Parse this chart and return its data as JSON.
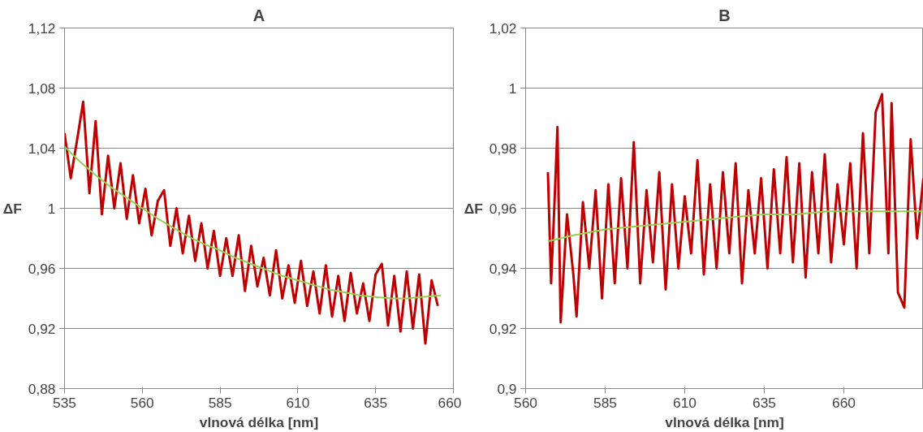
{
  "chart_data": [
    {
      "type": "line",
      "title": "A",
      "xlabel": "vlnová délka [nm]",
      "ylabel": "ΔF",
      "grid": "y",
      "line_style": "solid",
      "xlim": [
        535,
        660
      ],
      "xticks": [
        535,
        560,
        585,
        610,
        635,
        660
      ],
      "ylim": [
        0.88,
        1.12
      ],
      "yticks": [
        {
          "value": 0.88,
          "label": "0,88"
        },
        {
          "value": 0.92,
          "label": "0,92"
        },
        {
          "value": 0.96,
          "label": "0,96"
        },
        1,
        {
          "value": 1.04,
          "label": "1,04"
        },
        {
          "value": 1.08,
          "label": "1,08"
        },
        {
          "value": 1.12,
          "label": "1,12"
        }
      ],
      "series": [
        {
          "color": "#c00000",
          "x": [
            535,
            537,
            539,
            541,
            543,
            545,
            547,
            549,
            551,
            553,
            555,
            557,
            559,
            561,
            563,
            565,
            567,
            569,
            571,
            573,
            575,
            577,
            579,
            581,
            583,
            585,
            587,
            589,
            591,
            593,
            595,
            597,
            599,
            601,
            603,
            605,
            607,
            609,
            611,
            613,
            615,
            617,
            619,
            621,
            623,
            625,
            627,
            629,
            631,
            633,
            635,
            637,
            639,
            641,
            643,
            645,
            647,
            649,
            651,
            653,
            655
          ],
          "values": [
            1.05,
            1.02,
            1.045,
            1.071,
            1.01,
            1.058,
            0.996,
            1.035,
            1.0,
            1.03,
            0.993,
            1.022,
            0.99,
            1.013,
            0.982,
            1.005,
            1.012,
            0.975,
            1.0,
            0.97,
            0.995,
            0.965,
            0.99,
            0.96,
            0.985,
            0.955,
            0.98,
            0.955,
            0.982,
            0.945,
            0.975,
            0.948,
            0.967,
            0.942,
            0.972,
            0.94,
            0.962,
            0.937,
            0.965,
            0.935,
            0.958,
            0.93,
            0.962,
            0.928,
            0.955,
            0.925,
            0.957,
            0.93,
            0.95,
            0.925,
            0.956,
            0.963,
            0.922,
            0.955,
            0.918,
            0.958,
            0.92,
            0.956,
            0.91,
            0.952,
            0.935
          ]
        },
        {
          "color": "#92d050",
          "x": [
            535,
            540,
            545,
            550,
            555,
            560,
            565,
            570,
            575,
            580,
            585,
            590,
            595,
            600,
            605,
            610,
            615,
            620,
            625,
            630,
            635,
            640,
            645,
            650,
            656
          ],
          "values": [
            1.041,
            1.031,
            1.022,
            1.014,
            1.007,
            1.0,
            0.993,
            0.987,
            0.981,
            0.976,
            0.972,
            0.967,
            0.963,
            0.959,
            0.955,
            0.952,
            0.949,
            0.946,
            0.944,
            0.942,
            0.941,
            0.94,
            0.94,
            0.941,
            0.942
          ]
        }
      ]
    },
    {
      "type": "line",
      "title": "B",
      "xlabel": "vlnová délka [nm]",
      "ylabel": "ΔF",
      "grid": "y",
      "line_style": "solid",
      "xlim": [
        560,
        685
      ],
      "xticks": [
        560,
        585,
        610,
        635,
        660
      ],
      "ylim": [
        0.9,
        1.02
      ],
      "yticks": [
        {
          "value": 0.9,
          "label": "0,9"
        },
        {
          "value": 0.92,
          "label": "0,92"
        },
        {
          "value": 0.94,
          "label": "0,94"
        },
        {
          "value": 0.96,
          "label": "0,96"
        },
        {
          "value": 0.98,
          "label": "0,98"
        },
        1,
        {
          "value": 1.02,
          "label": "1,02"
        }
      ],
      "series": [
        {
          "color": "#c00000",
          "x": [
            567,
            568,
            569,
            570,
            571,
            573,
            575,
            576,
            578,
            580,
            582,
            584,
            586,
            588,
            590,
            592,
            594,
            596,
            598,
            600,
            602,
            604,
            606,
            608,
            610,
            612,
            614,
            616,
            618,
            620,
            622,
            624,
            626,
            628,
            630,
            632,
            634,
            636,
            638,
            640,
            642,
            644,
            646,
            648,
            650,
            652,
            654,
            656,
            658,
            660,
            662,
            664,
            666,
            668,
            670,
            672,
            674,
            675,
            677,
            679,
            681,
            683,
            685
          ],
          "values": [
            0.972,
            0.935,
            0.96,
            0.987,
            0.922,
            0.958,
            0.938,
            0.924,
            0.962,
            0.94,
            0.966,
            0.93,
            0.968,
            0.935,
            0.97,
            0.94,
            0.982,
            0.935,
            0.966,
            0.942,
            0.972,
            0.933,
            0.968,
            0.94,
            0.964,
            0.945,
            0.976,
            0.938,
            0.968,
            0.94,
            0.972,
            0.945,
            0.975,
            0.935,
            0.966,
            0.945,
            0.97,
            0.94,
            0.973,
            0.945,
            0.977,
            0.942,
            0.975,
            0.937,
            0.972,
            0.945,
            0.978,
            0.942,
            0.968,
            0.948,
            0.975,
            0.94,
            0.985,
            0.945,
            0.992,
            0.998,
            0.945,
            0.995,
            0.932,
            0.927,
            0.983,
            0.95,
            0.97
          ]
        },
        {
          "color": "#92d050",
          "x": [
            567,
            575,
            585,
            595,
            605,
            615,
            625,
            635,
            645,
            655,
            665,
            675,
            685
          ],
          "values": [
            0.949,
            0.951,
            0.953,
            0.954,
            0.955,
            0.956,
            0.957,
            0.958,
            0.958,
            0.959,
            0.959,
            0.959,
            0.959
          ]
        }
      ]
    }
  ]
}
